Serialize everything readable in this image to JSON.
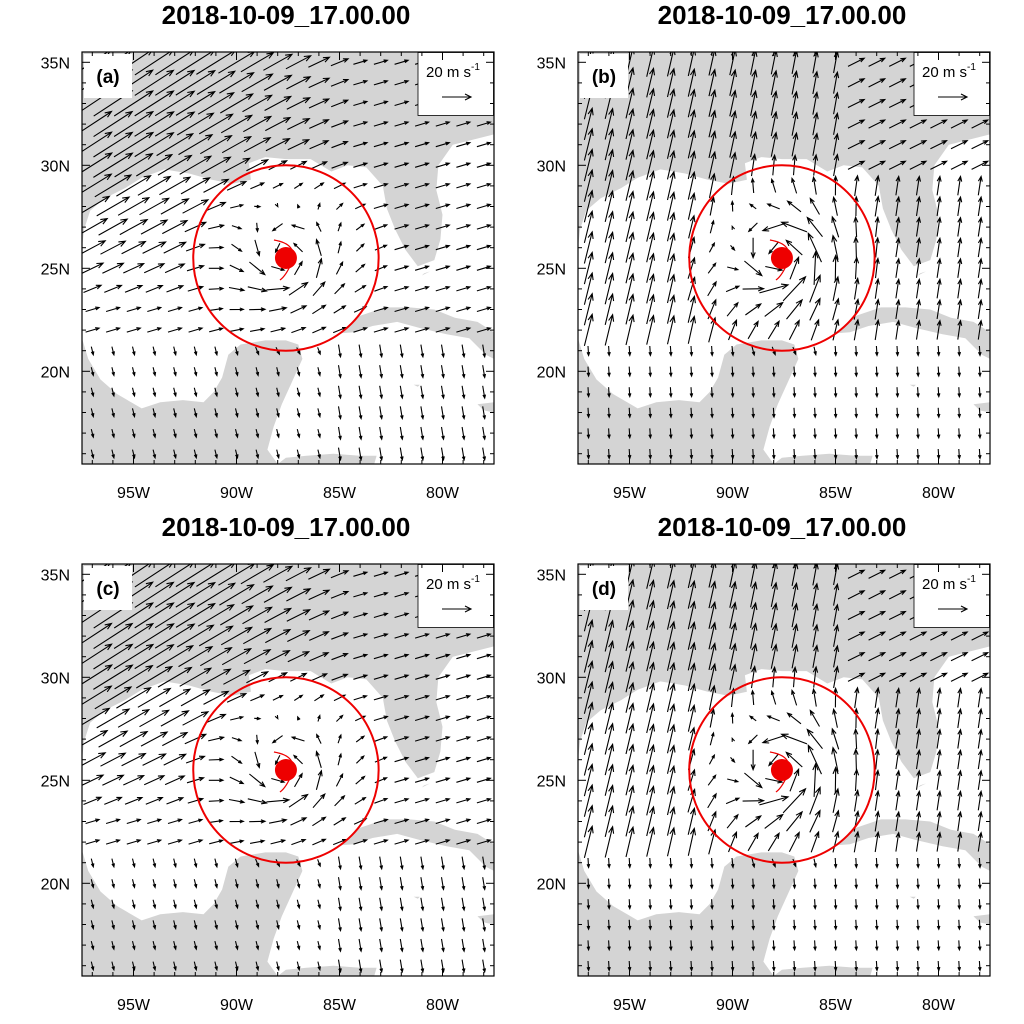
{
  "panels": [
    {
      "id": "a",
      "title": "2018-10-09_17.00.00",
      "label": "(a)",
      "flow": "southwesterly"
    },
    {
      "id": "b",
      "title": "2018-10-09_17.00.00",
      "label": "(b)",
      "flow": "southerly"
    },
    {
      "id": "c",
      "title": "2018-10-09_17.00.00",
      "label": "(c)",
      "flow": "southwesterly"
    },
    {
      "id": "d",
      "title": "2018-10-09_17.00.00",
      "label": "(d)",
      "flow": "southerly"
    }
  ],
  "axes": {
    "lon_ticks": [
      "95W",
      "90W",
      "85W",
      "80W"
    ],
    "lat_ticks": [
      "35N",
      "30N",
      "25N",
      "20N"
    ],
    "lon_values": [
      -95,
      -90,
      -85,
      -80
    ],
    "lat_values": [
      35,
      30,
      25,
      20
    ],
    "lon_range": [
      -97.5,
      -77.5
    ],
    "lat_range": [
      15.5,
      35.5
    ]
  },
  "reference_vector": {
    "value": "20",
    "unit": "m s",
    "exponent": "-1"
  },
  "storm": {
    "center_lon": -87.6,
    "center_lat": 25.5,
    "radius_deg": 4.5
  },
  "colors": {
    "land": "#d4d4d4",
    "ocean": "#ffffff",
    "storm": "#ee0000",
    "vector": "#000000"
  }
}
